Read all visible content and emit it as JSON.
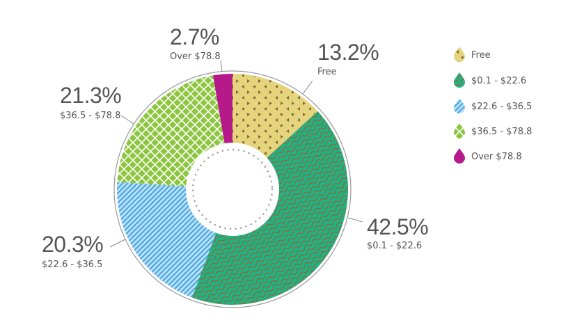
{
  "chart_data": {
    "type": "pie",
    "donut": true,
    "legend_position": "right",
    "slices": [
      {
        "label": "Free",
        "value": 13.2,
        "pct_label": "13.2%",
        "color": "#e6d47c",
        "pattern": "triangles",
        "pattern_color": "#7a6a3c"
      },
      {
        "label": "$0.1 - $22.6",
        "value": 42.5,
        "pct_label": "42.5%",
        "color": "#1fb383",
        "pattern": "waves",
        "pattern_color": "#8a6b3e"
      },
      {
        "label": "$22.6 - $36.5",
        "value": 20.3,
        "pct_label": "20.3%",
        "color": "#a9d8f3",
        "pattern": "diagonal-stripes",
        "pattern_color": "#3a9ee0"
      },
      {
        "label": "$36.5 - $78.8",
        "value": 21.3,
        "pct_label": "21.3%",
        "color": "#8cc63f",
        "pattern": "lattice",
        "pattern_color": "#ffffff"
      },
      {
        "label": "Over $78.8",
        "value": 2.7,
        "pct_label": "2.7%",
        "color": "#b5198a",
        "pattern": "solid",
        "pattern_color": "#b5198a"
      }
    ]
  }
}
